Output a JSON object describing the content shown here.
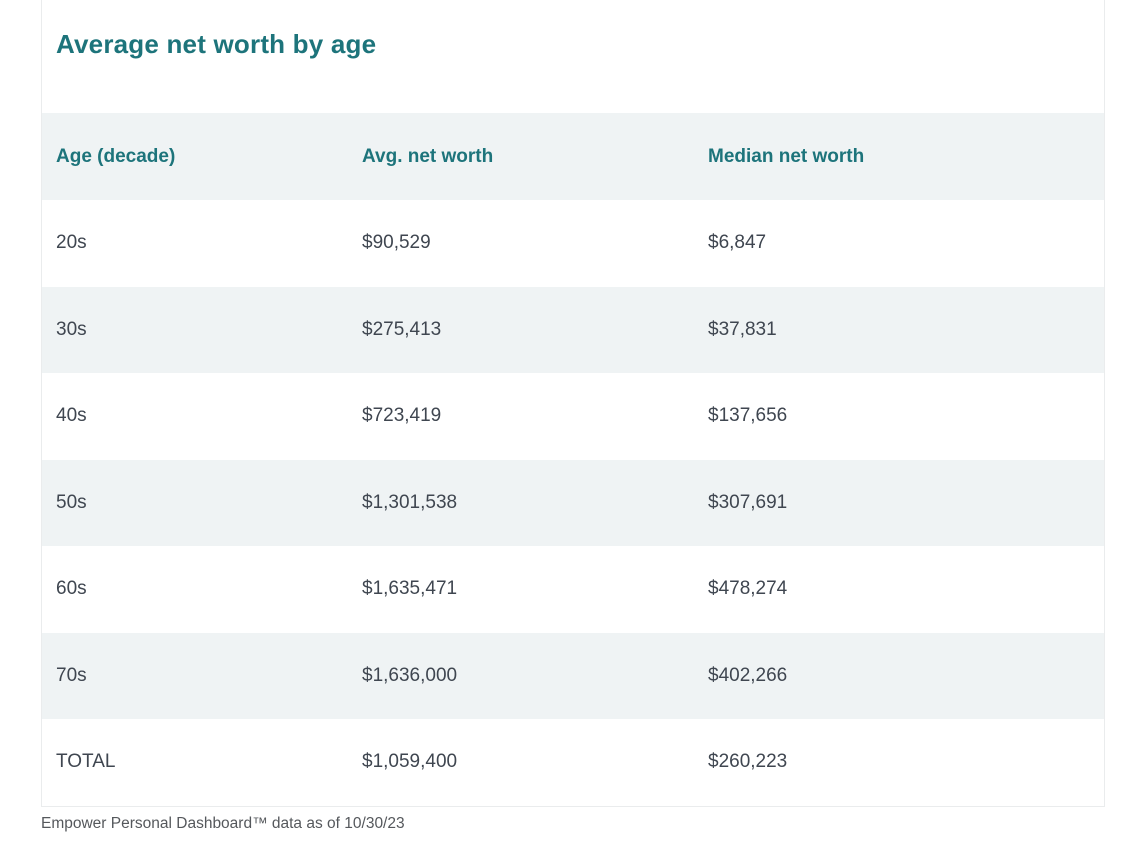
{
  "title": "Average net worth by age",
  "table": {
    "columns": [
      {
        "label": "Age (decade)"
      },
      {
        "label": "Avg. net worth"
      },
      {
        "label": "Median net worth"
      }
    ],
    "rows": [
      {
        "age": "20s",
        "avg": "$90,529",
        "median": "$6,847"
      },
      {
        "age": "30s",
        "avg": "$275,413",
        "median": "$37,831"
      },
      {
        "age": "40s",
        "avg": "$723,419",
        "median": "$137,656"
      },
      {
        "age": "50s",
        "avg": "$1,301,538",
        "median": "$307,691"
      },
      {
        "age": "60s",
        "avg": "$1,635,471",
        "median": "$478,274"
      },
      {
        "age": "70s",
        "avg": "$1,636,000",
        "median": "$402,266"
      },
      {
        "age": "TOTAL",
        "avg": "$1,059,400",
        "median": "$260,223"
      }
    ]
  },
  "footnote": "Empower Personal Dashboard™ data as of 10/30/23",
  "colors": {
    "accent_teal": "#1d747b",
    "row_stripe": "#eff3f4",
    "body_text": "#3f4650",
    "footnote_text": "#55585c",
    "card_border": "#eaeced"
  },
  "chart_data": {
    "type": "table",
    "title": "Average net worth by age",
    "columns": [
      "Age (decade)",
      "Avg. net worth",
      "Median net worth"
    ],
    "categories": [
      "20s",
      "30s",
      "40s",
      "50s",
      "60s",
      "70s",
      "TOTAL"
    ],
    "series": [
      {
        "name": "Avg. net worth",
        "values": [
          90529,
          275413,
          723419,
          1301538,
          1635471,
          1636000,
          1059400
        ]
      },
      {
        "name": "Median net worth",
        "values": [
          6847,
          37831,
          137656,
          307691,
          478274,
          402266,
          260223
        ]
      }
    ],
    "footnote": "Empower Personal Dashboard™ data as of 10/30/23"
  }
}
